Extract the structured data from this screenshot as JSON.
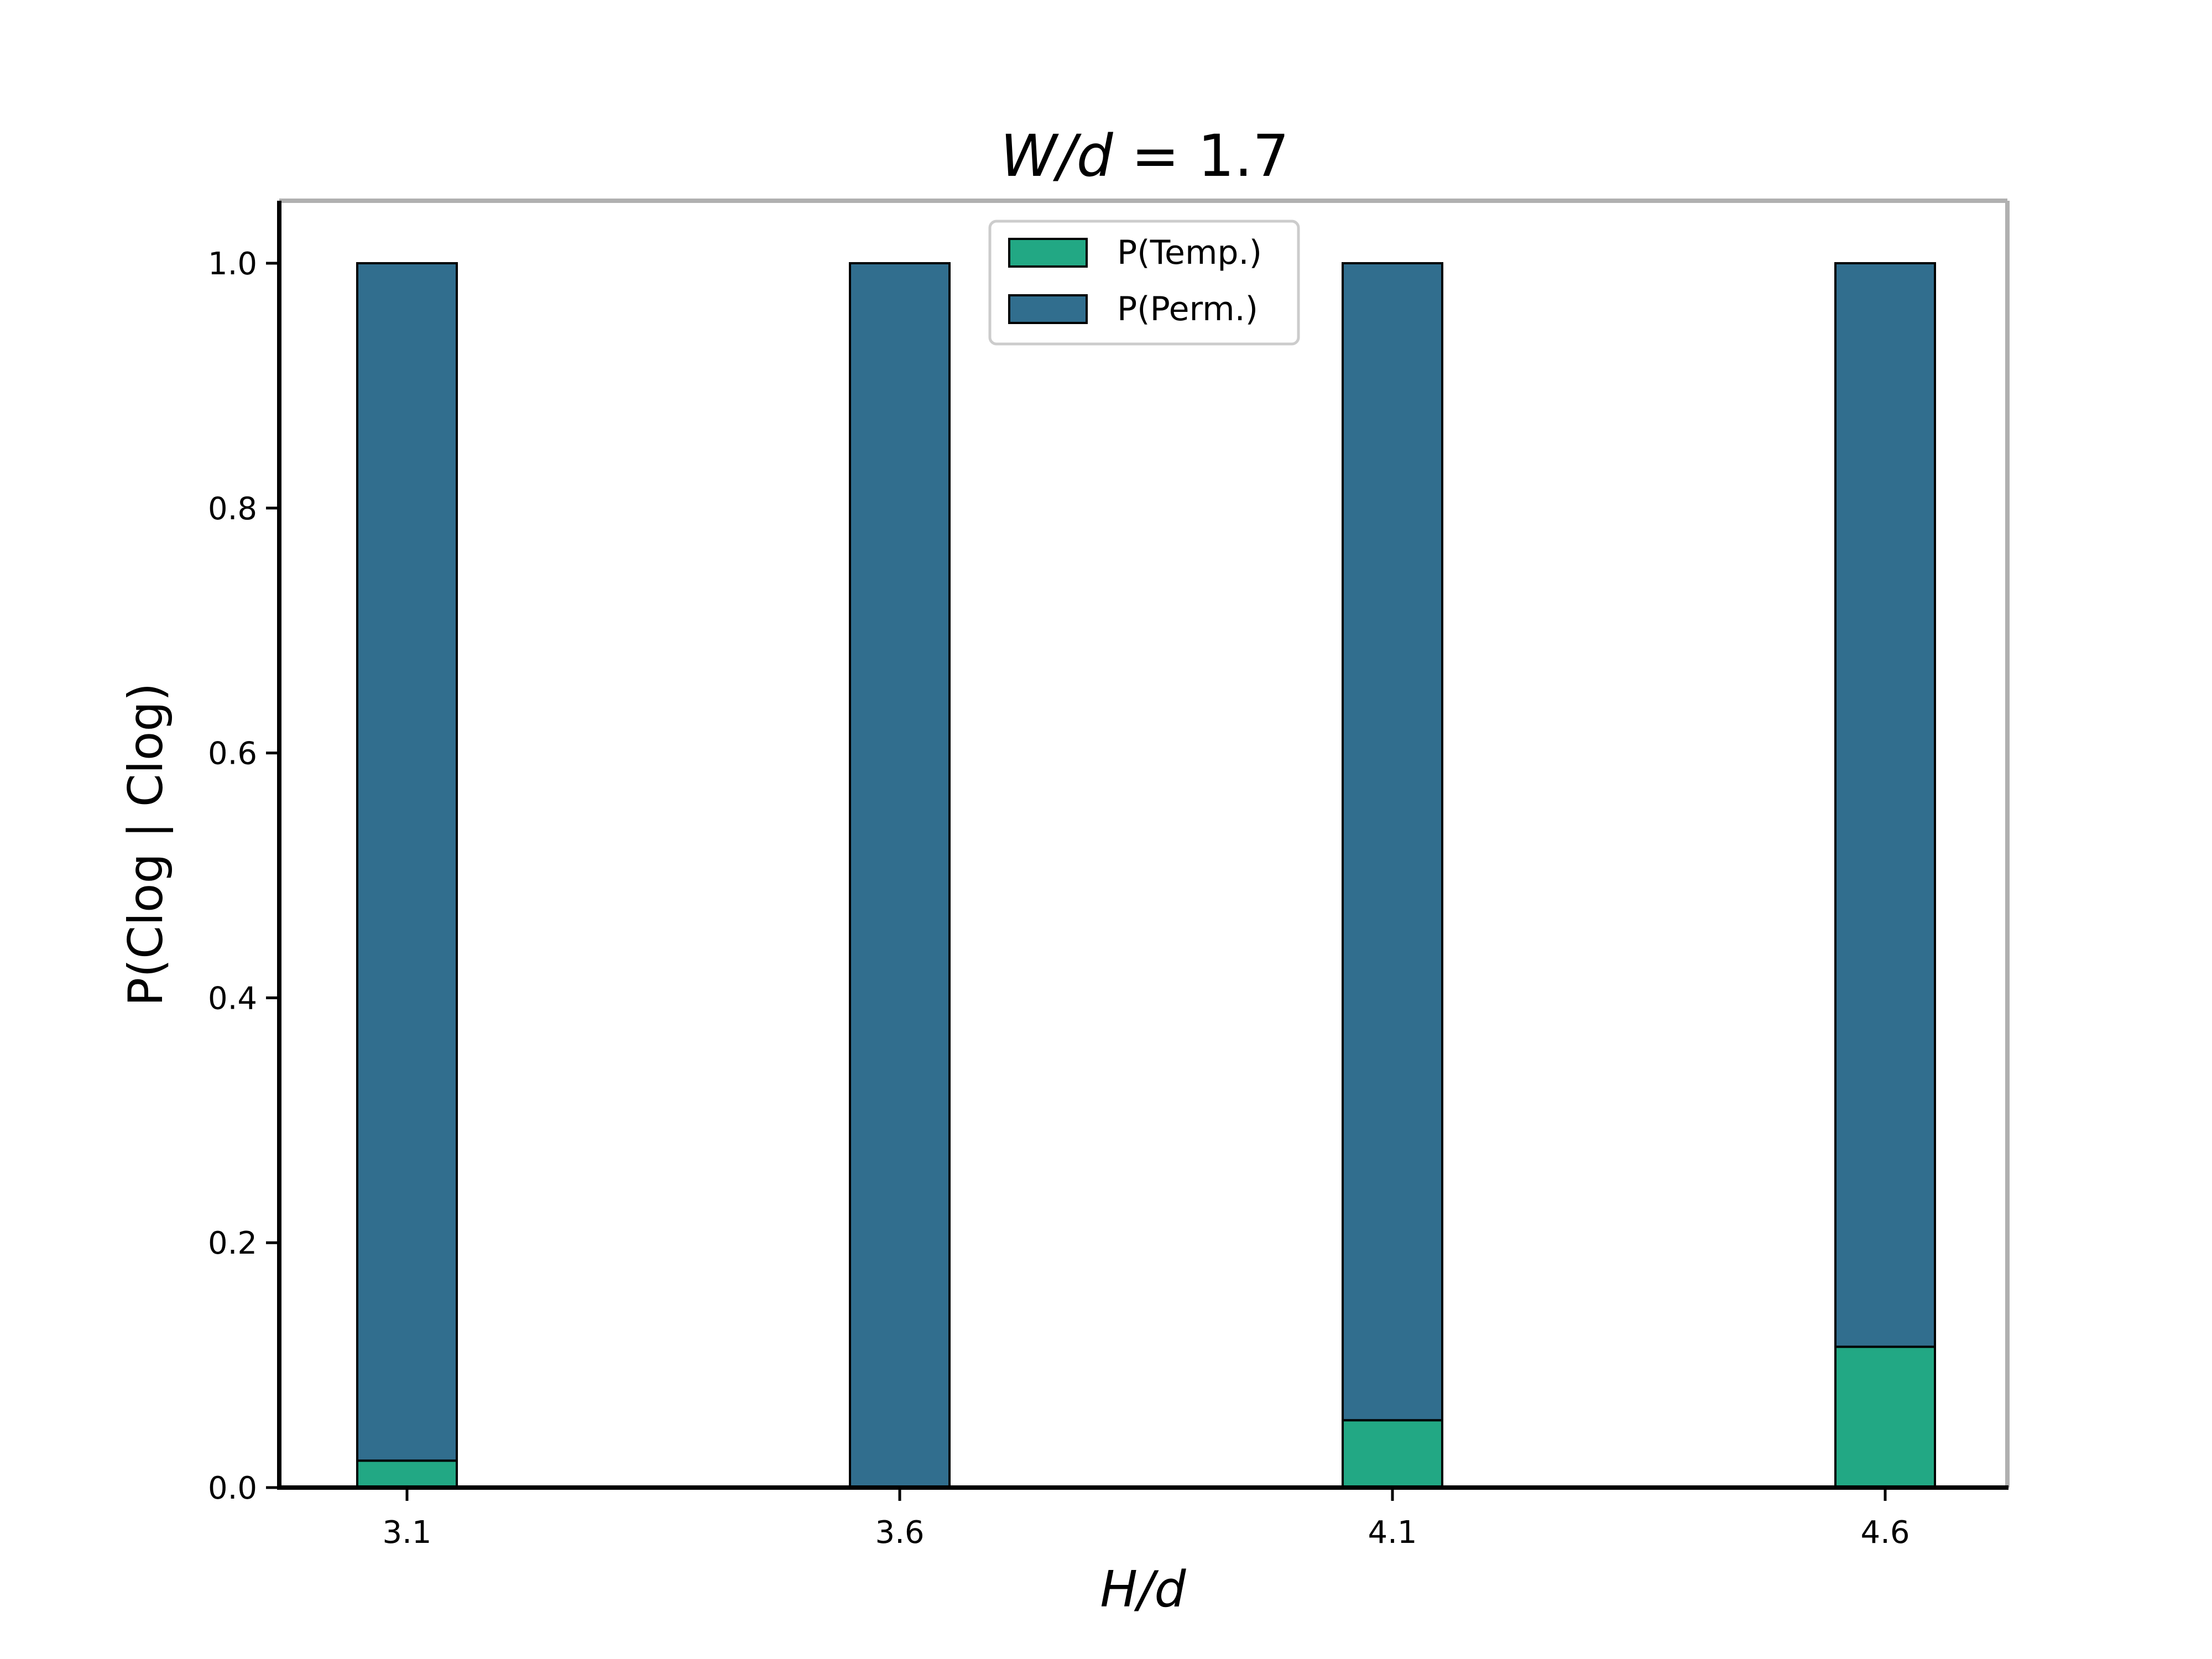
{
  "chart_data": {
    "type": "bar",
    "stacked": true,
    "title": "W/d = 1.7",
    "title_parts": {
      "var": "W/d",
      "eq": " = ",
      "val": "1.7"
    },
    "xlabel": "H/d",
    "ylabel": "P(Clog | Clog)",
    "categories": [
      "3.1",
      "3.6",
      "4.1",
      "4.6"
    ],
    "ylim": [
      0,
      1.05
    ],
    "yticks": [
      "0.0",
      "0.2",
      "0.4",
      "0.6",
      "0.8",
      "1.0"
    ],
    "legend_position": "top-center",
    "series": [
      {
        "name": "P(Temp.)",
        "color": "#22a884",
        "values": [
          0.022,
          0.0,
          0.055,
          0.115
        ]
      },
      {
        "name": "P(Perm.)",
        "color": "#316e8e",
        "values": [
          0.978,
          1.0,
          0.945,
          0.885
        ]
      }
    ]
  }
}
